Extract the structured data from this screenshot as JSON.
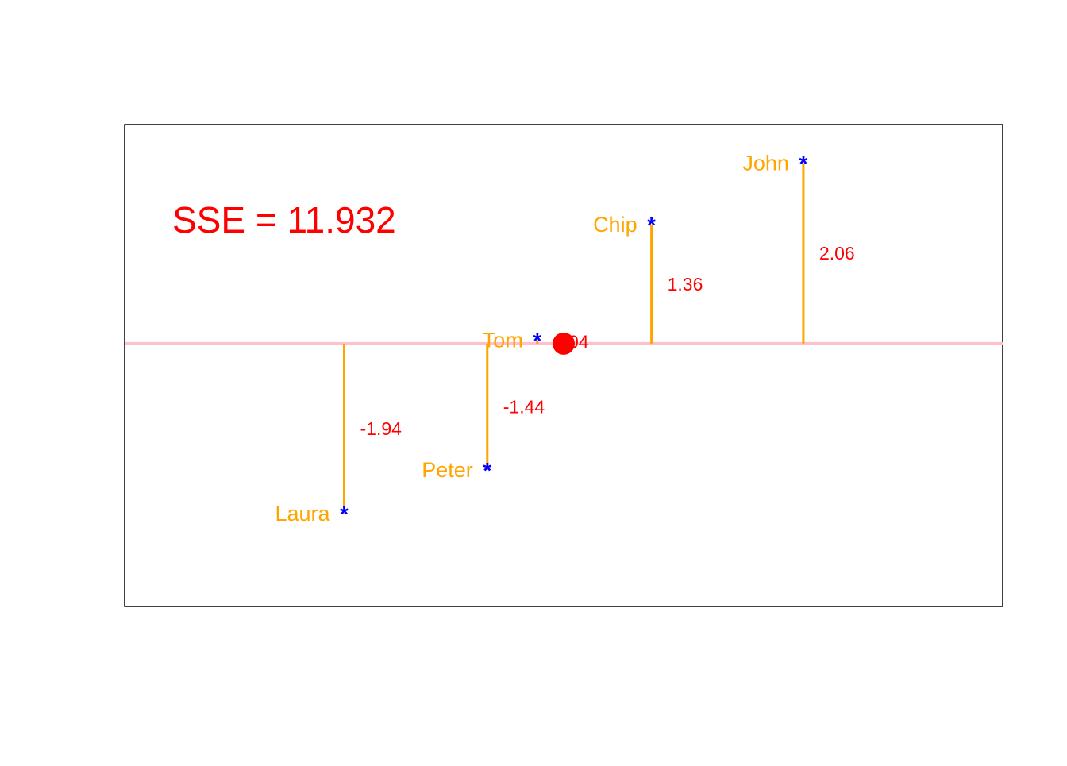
{
  "chart_data": {
    "type": "scatter",
    "title": "",
    "xlabel": "",
    "ylabel": "",
    "xlim": [
      0,
      10
    ],
    "ylim": [
      -3,
      2.5
    ],
    "grid": false,
    "annotation": "SSE = 11.932",
    "mean_line": 0,
    "points": [
      {
        "name": "Laura",
        "x": 2.5,
        "y": -1.94,
        "residual_label": "-1.94"
      },
      {
        "name": "Peter",
        "x": 4.13,
        "y": -1.44,
        "residual_label": "-1.44"
      },
      {
        "name": "Tom",
        "x": 4.7,
        "y": 0.04,
        "residual_label": "0.04"
      },
      {
        "name": "Chip",
        "x": 6.0,
        "y": 1.36,
        "residual_label": "1.36"
      },
      {
        "name": "John",
        "x": 7.73,
        "y": 2.06,
        "residual_label": "2.06"
      }
    ],
    "center_point": {
      "x": 5.0,
      "y": 0
    },
    "colors": {
      "point": "#0000ff",
      "point_label": "#ffa500",
      "residual_line": "#ffa500",
      "residual_label": "#ff0000",
      "mean_line": "#ffc0cb",
      "annotation": "#ff0000",
      "center_point": "#ff0000",
      "frame": "#000000"
    }
  }
}
